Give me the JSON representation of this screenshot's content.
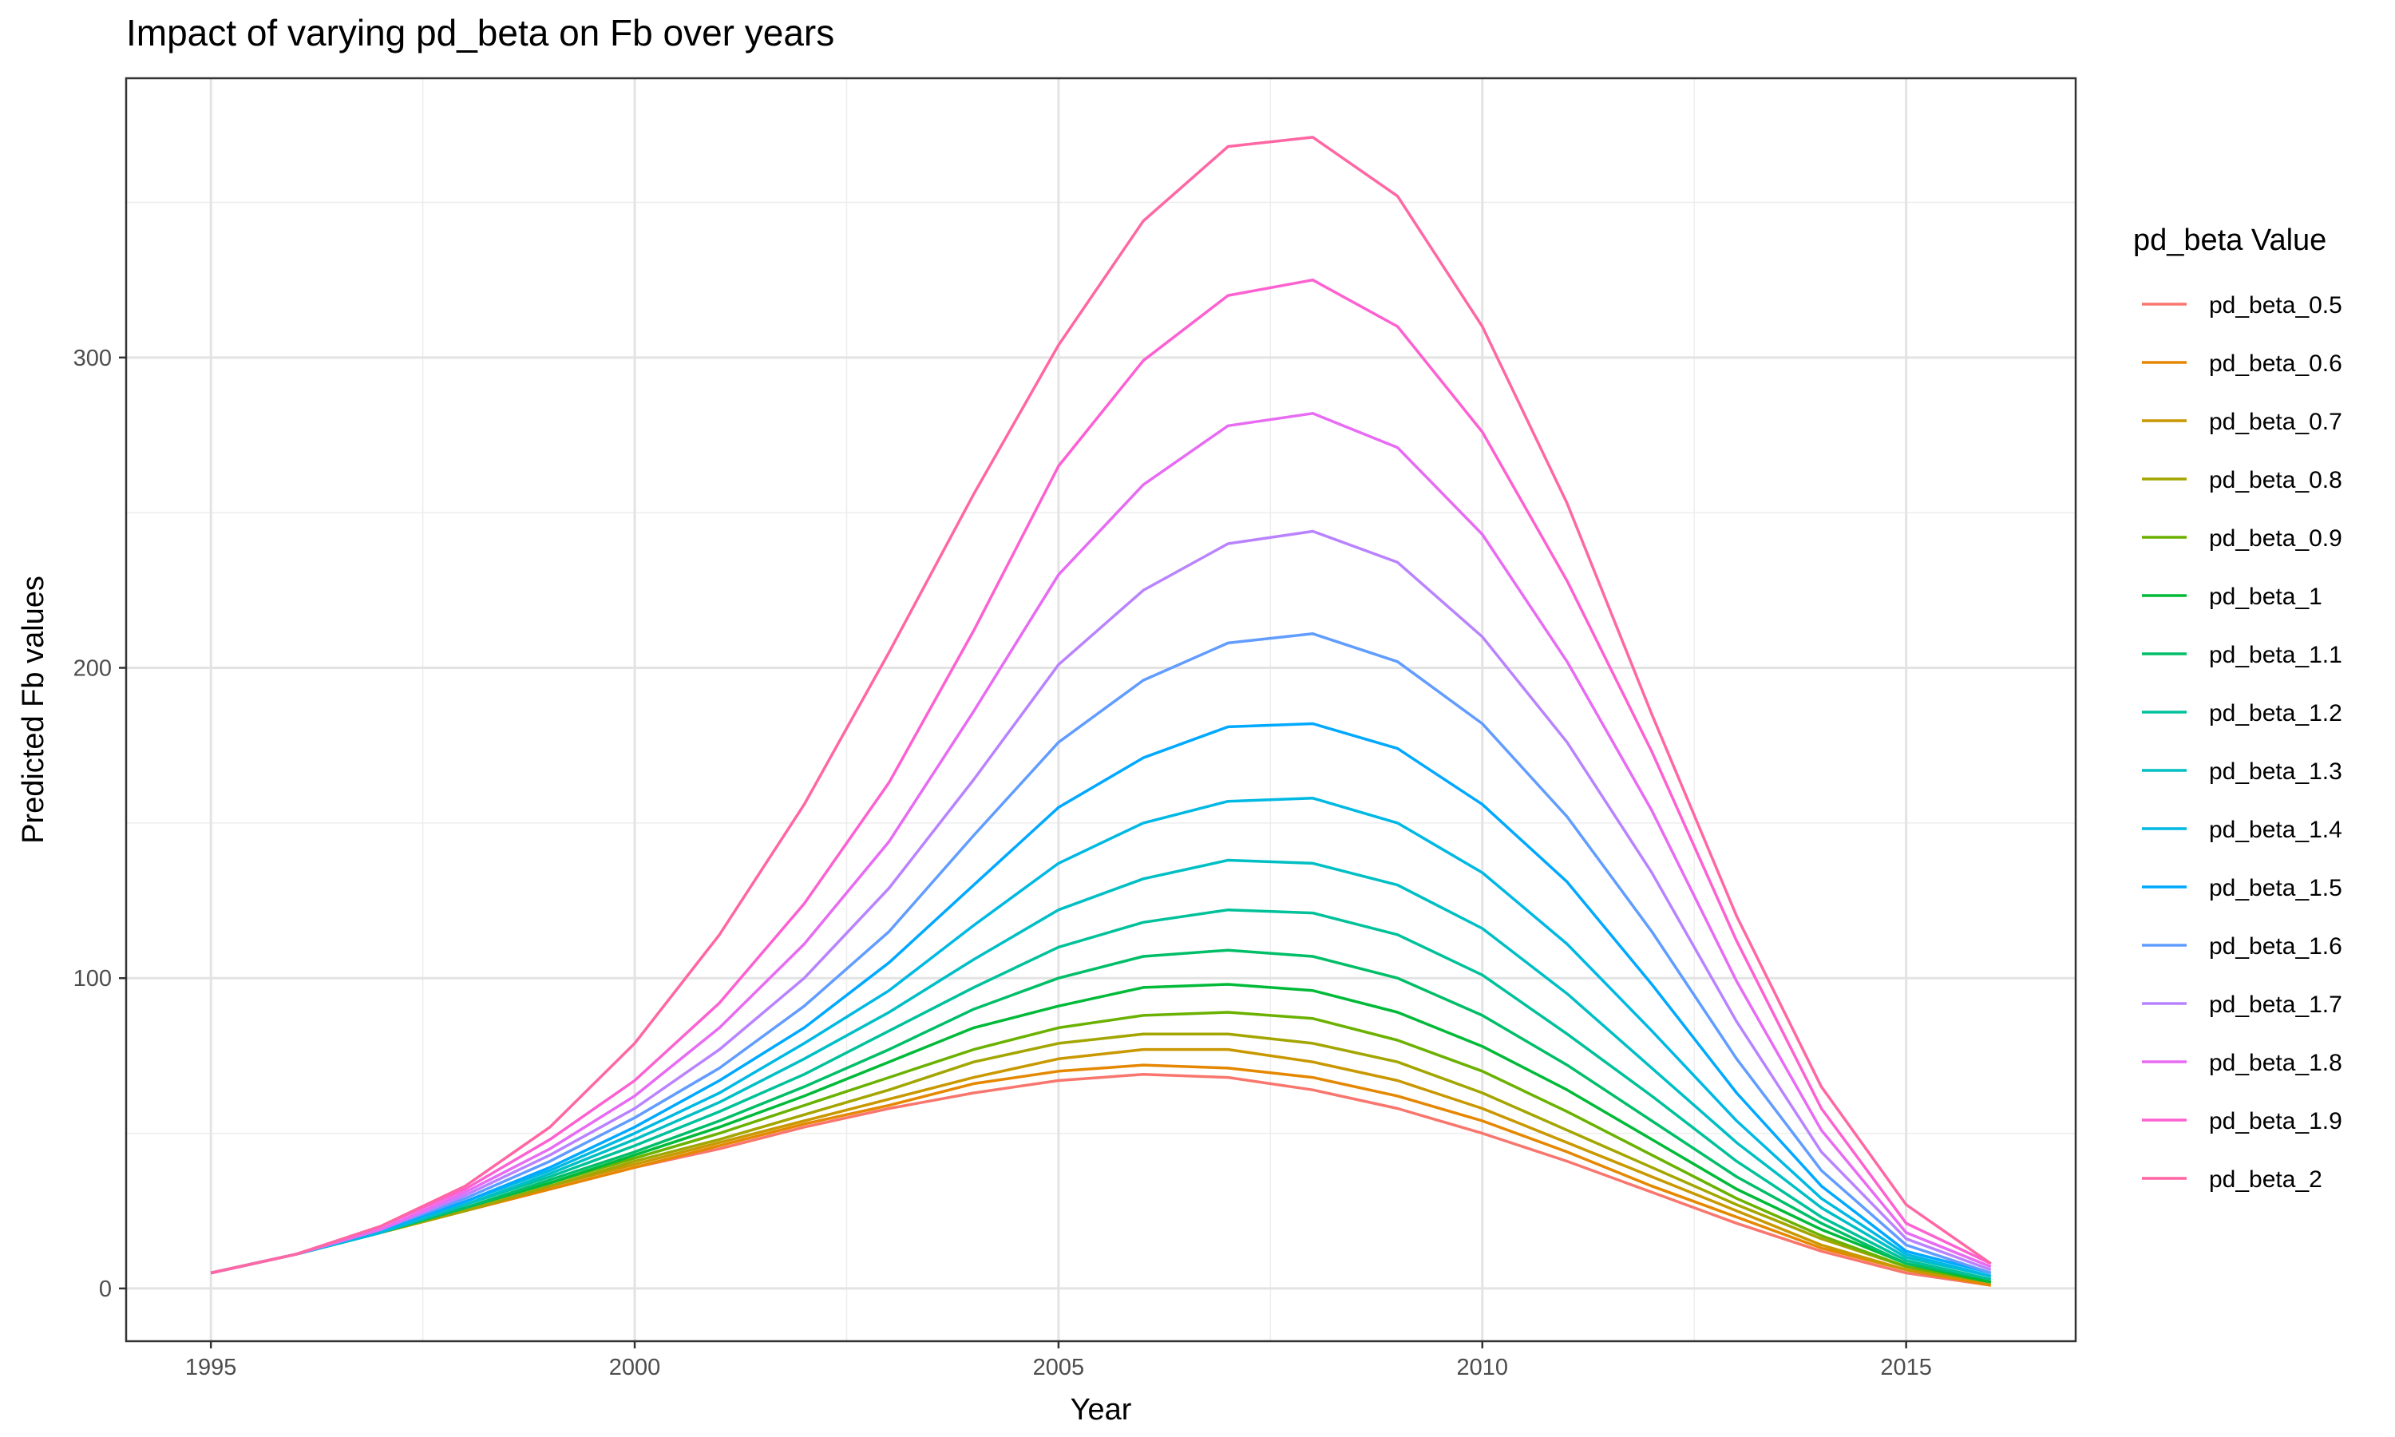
{
  "chart_data": {
    "type": "line",
    "title": "Impact of varying pd_beta on Fb over years",
    "xlabel": "Year",
    "ylabel": "Predicted Fb values",
    "xlim": [
      1994.0,
      2017.0
    ],
    "ylim": [
      -17,
      390
    ],
    "x_ticks": [
      1995,
      2000,
      2005,
      2010,
      2015
    ],
    "x_tick_labels": [
      "1995",
      "2000",
      "2005",
      "2010",
      "2015"
    ],
    "y_ticks": [
      0,
      100,
      200,
      300
    ],
    "y_tick_labels": [
      "0",
      "100",
      "200",
      "300"
    ],
    "grid": true,
    "legend": {
      "title": "pd_beta Value",
      "position": "right"
    },
    "x": [
      1995,
      1996,
      1997,
      1998,
      1999,
      2000,
      2001,
      2002,
      2003,
      2004,
      2005,
      2006,
      2007,
      2008,
      2009,
      2010,
      2011,
      2012,
      2013,
      2014,
      2015,
      2016
    ],
    "series": [
      {
        "name": "pd_beta_0.5",
        "color": "#F8766D",
        "values": [
          5,
          11,
          18,
          25,
          32,
          39,
          45,
          52,
          58,
          63,
          67,
          69,
          68,
          64,
          58,
          50,
          41,
          31,
          21,
          12,
          5,
          1
        ]
      },
      {
        "name": "pd_beta_0.6",
        "color": "#E58700",
        "values": [
          5,
          11,
          18,
          25,
          32,
          39,
          46,
          53,
          59,
          66,
          70,
          72,
          71,
          68,
          62,
          54,
          44,
          33,
          23,
          13,
          6,
          1
        ]
      },
      {
        "name": "pd_beta_0.7",
        "color": "#C99800",
        "values": [
          5,
          11,
          18,
          25,
          33,
          40,
          47,
          54,
          61,
          68,
          74,
          77,
          77,
          73,
          67,
          58,
          47,
          36,
          25,
          14,
          6,
          2
        ]
      },
      {
        "name": "pd_beta_0.8",
        "color": "#A3A500",
        "values": [
          5,
          11,
          18,
          25,
          33,
          41,
          48,
          56,
          64,
          73,
          79,
          82,
          82,
          79,
          73,
          63,
          51,
          39,
          27,
          16,
          7,
          2
        ]
      },
      {
        "name": "pd_beta_0.9",
        "color": "#6BB100",
        "values": [
          5,
          11,
          18,
          26,
          34,
          42,
          50,
          59,
          68,
          77,
          84,
          88,
          89,
          87,
          80,
          70,
          57,
          43,
          29,
          17,
          7,
          2
        ]
      },
      {
        "name": "pd_beta_1",
        "color": "#00BA38",
        "values": [
          5,
          11,
          18,
          26,
          34,
          43,
          52,
          62,
          73,
          84,
          91,
          97,
          98,
          96,
          89,
          78,
          64,
          48,
          32,
          19,
          8,
          2
        ]
      },
      {
        "name": "pd_beta_1.1",
        "color": "#00BE67",
        "values": [
          5,
          11,
          18,
          26,
          35,
          44,
          54,
          65,
          77,
          90,
          100,
          107,
          109,
          107,
          100,
          88,
          72,
          54,
          36,
          21,
          8,
          3
        ]
      },
      {
        "name": "pd_beta_1.2",
        "color": "#00C19A",
        "values": [
          5,
          11,
          18,
          27,
          36,
          46,
          57,
          69,
          83,
          97,
          110,
          118,
          122,
          121,
          114,
          101,
          82,
          62,
          41,
          23,
          9,
          3
        ]
      },
      {
        "name": "pd_beta_1.3",
        "color": "#00BFC4",
        "values": [
          5,
          11,
          18,
          27,
          37,
          48,
          60,
          74,
          89,
          106,
          122,
          132,
          138,
          137,
          130,
          116,
          95,
          71,
          47,
          26,
          10,
          4
        ]
      },
      {
        "name": "pd_beta_1.4",
        "color": "#00B9E3",
        "values": [
          5,
          11,
          18,
          28,
          38,
          50,
          63,
          79,
          96,
          117,
          137,
          150,
          157,
          158,
          150,
          134,
          111,
          83,
          54,
          29,
          11,
          4
        ]
      },
      {
        "name": "pd_beta_1.5",
        "color": "#00A9FF",
        "values": [
          5,
          11,
          19,
          28,
          39,
          52,
          67,
          84,
          105,
          130,
          155,
          171,
          181,
          182,
          174,
          156,
          131,
          98,
          63,
          33,
          12,
          5
        ]
      },
      {
        "name": "pd_beta_1.6",
        "color": "#619CFF",
        "values": [
          5,
          11,
          19,
          29,
          41,
          55,
          71,
          91,
          115,
          146,
          176,
          196,
          208,
          211,
          202,
          182,
          152,
          115,
          74,
          38,
          14,
          5
        ]
      },
      {
        "name": "pd_beta_1.7",
        "color": "#B983FF",
        "values": [
          5,
          11,
          19,
          30,
          43,
          58,
          77,
          100,
          129,
          164,
          201,
          225,
          240,
          244,
          234,
          210,
          176,
          134,
          86,
          44,
          16,
          6
        ]
      },
      {
        "name": "pd_beta_1.8",
        "color": "#E76BF3",
        "values": [
          5,
          11,
          19,
          31,
          45,
          62,
          84,
          111,
          144,
          186,
          230,
          259,
          278,
          282,
          271,
          243,
          202,
          154,
          99,
          51,
          18,
          7
        ]
      },
      {
        "name": "pd_beta_1.9",
        "color": "#FD61D1",
        "values": [
          5,
          11,
          20,
          32,
          48,
          67,
          92,
          124,
          163,
          212,
          265,
          299,
          320,
          325,
          310,
          276,
          228,
          173,
          112,
          58,
          21,
          8
        ]
      },
      {
        "name": "pd_beta_2",
        "color": "#FF67A4",
        "values": [
          5,
          11,
          20,
          33,
          52,
          79,
          114,
          156,
          205,
          256,
          304,
          344,
          368,
          371,
          352,
          310,
          253,
          185,
          120,
          65,
          27,
          8
        ]
      }
    ]
  }
}
